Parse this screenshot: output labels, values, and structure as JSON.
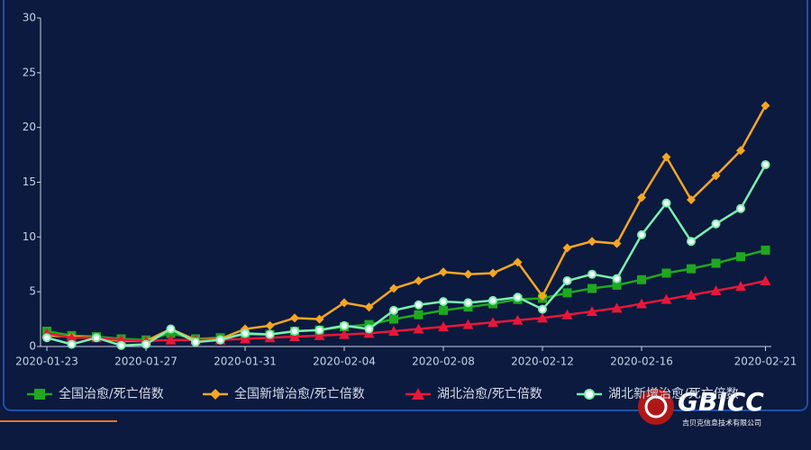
{
  "chart_data": {
    "type": "line",
    "categories": [
      "2020-01-23",
      null,
      null,
      null,
      "2020-01-27",
      null,
      null,
      null,
      "2020-01-31",
      null,
      null,
      null,
      "2020-02-04",
      null,
      null,
      null,
      "2020-02-08",
      null,
      null,
      null,
      "2020-02-12",
      null,
      null,
      null,
      "2020-02-16",
      null,
      null,
      null,
      null,
      "2020-02-21"
    ],
    "ylim": [
      0,
      30
    ],
    "yticks": [
      0,
      5,
      10,
      15,
      20,
      25,
      30
    ],
    "grid": false,
    "legend": "bottom",
    "series": [
      {
        "name": "全国治愈/死亡倍数",
        "color": "#1fa81f",
        "marker": "square",
        "values": [
          1.4,
          1.0,
          0.9,
          0.7,
          0.6,
          1.2,
          0.7,
          0.8,
          1.1,
          1.1,
          1.4,
          1.5,
          1.8,
          2.0,
          2.5,
          2.9,
          3.3,
          3.6,
          3.9,
          4.3,
          4.4,
          4.9,
          5.3,
          5.6,
          6.1,
          6.7,
          7.1,
          7.6,
          8.2,
          8.8
        ]
      },
      {
        "name": "全国新增治愈/死亡倍数",
        "color": "#f5a623",
        "marker": "diamond",
        "values": [
          1.0,
          0.9,
          0.8,
          0.5,
          0.5,
          1.6,
          0.6,
          0.7,
          1.6,
          1.9,
          2.6,
          2.5,
          4.0,
          3.6,
          5.3,
          6.0,
          6.8,
          6.6,
          6.7,
          7.7,
          4.6,
          9.0,
          9.6,
          9.4,
          13.6,
          17.3,
          13.4,
          15.6,
          17.9,
          22.0
        ]
      },
      {
        "name": "湖北治愈/死亡倍数",
        "color": "#e8173a",
        "marker": "triangle",
        "values": [
          1.2,
          0.8,
          0.8,
          0.6,
          0.5,
          0.6,
          0.6,
          0.6,
          0.7,
          0.8,
          0.9,
          1.0,
          1.1,
          1.2,
          1.4,
          1.6,
          1.8,
          2.0,
          2.2,
          2.4,
          2.6,
          2.9,
          3.2,
          3.5,
          3.9,
          4.3,
          4.7,
          5.1,
          5.5,
          6.0
        ]
      },
      {
        "name": "湖北新增治愈/死亡倍数",
        "color": "#7cf0b0",
        "marker": "circle",
        "values": [
          0.8,
          0.2,
          0.8,
          0.1,
          0.2,
          1.6,
          0.4,
          0.6,
          1.2,
          1.1,
          1.4,
          1.5,
          1.9,
          1.6,
          3.3,
          3.8,
          4.1,
          4.0,
          4.2,
          4.5,
          3.4,
          6.0,
          6.6,
          6.2,
          10.2,
          13.1,
          9.6,
          11.2,
          12.6,
          16.6
        ]
      }
    ]
  },
  "logo": {
    "mark": "GBICC",
    "company": "吉贝克信息技术有限公司"
  }
}
